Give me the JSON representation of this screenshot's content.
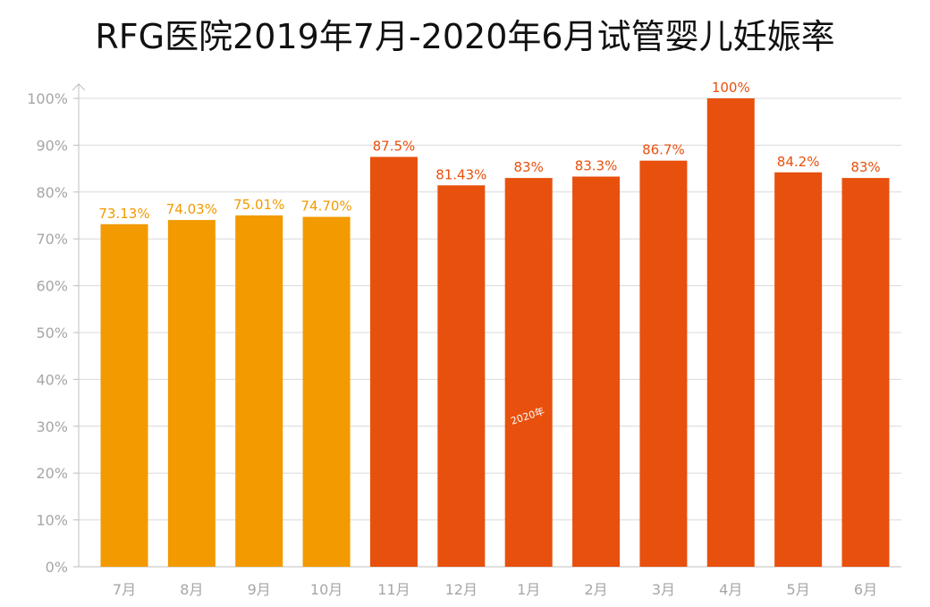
{
  "chart_data": {
    "type": "bar",
    "title": "RFG医院2019年7月-2020年6月试管婴儿妊娠率",
    "xlabel": "",
    "ylabel": "",
    "ylim": [
      0,
      100
    ],
    "grid": true,
    "y_ticks": [
      "0%",
      "10%",
      "20%",
      "30%",
      "40%",
      "50%",
      "60%",
      "70%",
      "80%",
      "90%",
      "100%"
    ],
    "categories": [
      "7月",
      "8月",
      "9月",
      "10月",
      "11月",
      "12月",
      "1月",
      "2月",
      "3月",
      "4月",
      "5月",
      "6月"
    ],
    "values": [
      73.13,
      74.03,
      75.01,
      74.7,
      87.5,
      81.43,
      83,
      83.3,
      86.7,
      100,
      84.2,
      83
    ],
    "data_labels": [
      "73.13%",
      "74.03%",
      "75.01%",
      "74.70%",
      "87.5%",
      "81.43%",
      "83%",
      "83.3%",
      "86.7%",
      "100%",
      "84.2%",
      "83%"
    ],
    "bar_colors": [
      "#f29a00",
      "#f29a00",
      "#f29a00",
      "#f29a00",
      "#e8500e",
      "#e8500e",
      "#e8500e",
      "#e8500e",
      "#e8500e",
      "#e8500e",
      "#e8500e",
      "#e8500e"
    ],
    "annotation": "2020年"
  }
}
